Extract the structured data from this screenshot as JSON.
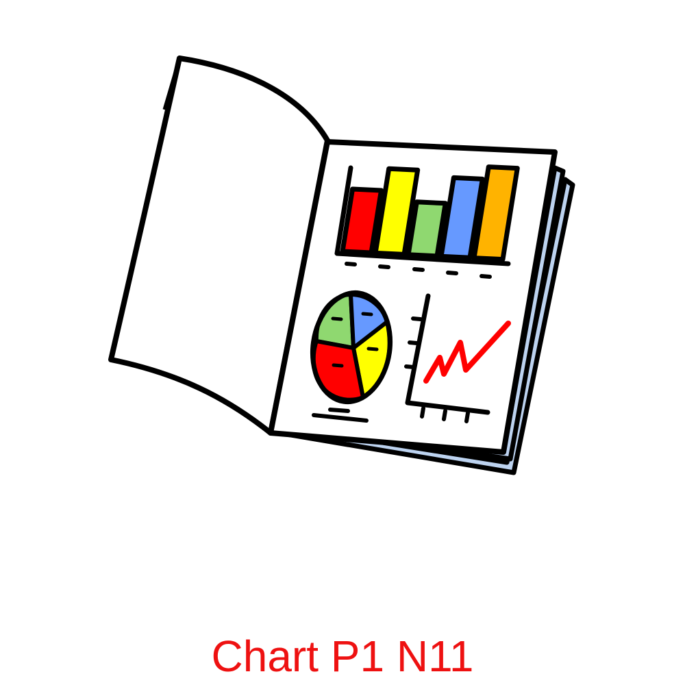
{
  "caption": {
    "text": "Chart P1 N11"
  },
  "colors": {
    "caption": "#ee1111",
    "outline": "#000000",
    "paper": "#ffffff",
    "page_edge": "#bdd3f0",
    "bar_red": "#ff0000",
    "bar_yellow": "#ffff00",
    "bar_green": "#8fd870",
    "bar_blue": "#6699ff",
    "bar_orange": "#ffb300",
    "pie_green": "#8fd870",
    "pie_blue": "#6699ff",
    "pie_yellow": "#ffff00",
    "pie_red": "#ff0000",
    "trend_line": "#ff0000"
  },
  "illustration": {
    "icon": "open-report-book-icon",
    "bar_levels": [
      0.65,
      0.88,
      0.55,
      0.82,
      0.95
    ]
  }
}
